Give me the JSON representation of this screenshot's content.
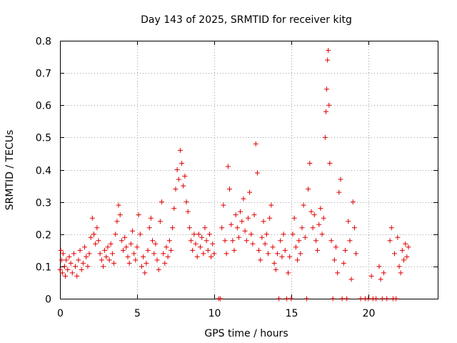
{
  "chart_data": {
    "type": "scatter",
    "title": "Day 143 of 2025, SRMTID for receiver kitg",
    "xlabel": "GPS time / hours",
    "ylabel": "SRMTID / TECUs",
    "xlim": [
      0,
      24.5
    ],
    "ylim": [
      0,
      0.8
    ],
    "xticks": [
      0,
      5,
      10,
      15,
      20
    ],
    "xtick_labels": [
      "0",
      "5",
      "10",
      "15",
      "20"
    ],
    "yticks": [
      0,
      0.1,
      0.2,
      0.3,
      0.4,
      0.5,
      0.6,
      0.7,
      0.8
    ],
    "ytick_labels": [
      "0",
      "0.1",
      "0.2",
      "0.3",
      "0.4",
      "0.5",
      "0.6",
      "0.7",
      "0.8"
    ],
    "grid": true,
    "marker": "plus",
    "color": "#e00000",
    "series": [
      {
        "name": "SRMTID",
        "points": [
          [
            0.0,
            0.09
          ],
          [
            0.05,
            0.15
          ],
          [
            0.1,
            0.12
          ],
          [
            0.15,
            0.08
          ],
          [
            0.2,
            0.14
          ],
          [
            0.3,
            0.1
          ],
          [
            0.35,
            0.07
          ],
          [
            0.4,
            0.12
          ],
          [
            0.5,
            0.09
          ],
          [
            0.6,
            0.13
          ],
          [
            0.7,
            0.11
          ],
          [
            0.8,
            0.08
          ],
          [
            0.9,
            0.14
          ],
          [
            1.0,
            0.1
          ],
          [
            1.1,
            0.07
          ],
          [
            1.2,
            0.12
          ],
          [
            1.3,
            0.15
          ],
          [
            1.4,
            0.09
          ],
          [
            1.5,
            0.11
          ],
          [
            1.6,
            0.16
          ],
          [
            1.7,
            0.13
          ],
          [
            1.8,
            0.1
          ],
          [
            1.9,
            0.14
          ],
          [
            2.0,
            0.19
          ],
          [
            2.1,
            0.25
          ],
          [
            2.2,
            0.2
          ],
          [
            2.3,
            0.17
          ],
          [
            2.4,
            0.22
          ],
          [
            2.5,
            0.18
          ],
          [
            2.6,
            0.14
          ],
          [
            2.7,
            0.12
          ],
          [
            2.8,
            0.1
          ],
          [
            2.9,
            0.15
          ],
          [
            3.0,
            0.13
          ],
          [
            3.1,
            0.16
          ],
          [
            3.2,
            0.12
          ],
          [
            3.3,
            0.17
          ],
          [
            3.4,
            0.14
          ],
          [
            3.5,
            0.11
          ],
          [
            3.6,
            0.2
          ],
          [
            3.7,
            0.24
          ],
          [
            3.8,
            0.29
          ],
          [
            3.9,
            0.26
          ],
          [
            4.0,
            0.18
          ],
          [
            4.1,
            0.15
          ],
          [
            4.2,
            0.19
          ],
          [
            4.3,
            0.16
          ],
          [
            4.4,
            0.13
          ],
          [
            4.5,
            0.11
          ],
          [
            4.6,
            0.17
          ],
          [
            4.7,
            0.21
          ],
          [
            4.8,
            0.14
          ],
          [
            4.9,
            0.12
          ],
          [
            5.0,
            0.16
          ],
          [
            5.1,
            0.26
          ],
          [
            5.2,
            0.2
          ],
          [
            5.3,
            0.1
          ],
          [
            5.4,
            0.13
          ],
          [
            5.5,
            0.08
          ],
          [
            5.6,
            0.11
          ],
          [
            5.7,
            0.15
          ],
          [
            5.8,
            0.22
          ],
          [
            5.9,
            0.25
          ],
          [
            6.0,
            0.18
          ],
          [
            6.1,
            0.14
          ],
          [
            6.2,
            0.17
          ],
          [
            6.3,
            0.12
          ],
          [
            6.4,
            0.09
          ],
          [
            6.5,
            0.24
          ],
          [
            6.6,
            0.3
          ],
          [
            6.7,
            0.14
          ],
          [
            6.8,
            0.11
          ],
          [
            6.9,
            0.16
          ],
          [
            7.0,
            0.13
          ],
          [
            7.1,
            0.18
          ],
          [
            7.2,
            0.15
          ],
          [
            7.3,
            0.22
          ],
          [
            7.4,
            0.28
          ],
          [
            7.5,
            0.34
          ],
          [
            7.6,
            0.4
          ],
          [
            7.7,
            0.37
          ],
          [
            7.8,
            0.46
          ],
          [
            7.9,
            0.42
          ],
          [
            8.0,
            0.35
          ],
          [
            8.1,
            0.38
          ],
          [
            8.2,
            0.3
          ],
          [
            8.3,
            0.27
          ],
          [
            8.4,
            0.22
          ],
          [
            8.5,
            0.18
          ],
          [
            8.6,
            0.15
          ],
          [
            8.7,
            0.2
          ],
          [
            8.8,
            0.17
          ],
          [
            8.9,
            0.13
          ],
          [
            9.0,
            0.2
          ],
          [
            9.1,
            0.16
          ],
          [
            9.2,
            0.19
          ],
          [
            9.3,
            0.14
          ],
          [
            9.4,
            0.22
          ],
          [
            9.5,
            0.18
          ],
          [
            9.6,
            0.15
          ],
          [
            9.7,
            0.2
          ],
          [
            9.8,
            0.13
          ],
          [
            9.9,
            0.17
          ],
          [
            10.0,
            0.14
          ],
          [
            10.3,
            0.0
          ],
          [
            10.4,
            0.0
          ],
          [
            10.5,
            0.22
          ],
          [
            10.6,
            0.29
          ],
          [
            10.7,
            0.18
          ],
          [
            10.8,
            0.14
          ],
          [
            10.9,
            0.41
          ],
          [
            11.0,
            0.34
          ],
          [
            11.1,
            0.23
          ],
          [
            11.2,
            0.18
          ],
          [
            11.3,
            0.15
          ],
          [
            11.4,
            0.26
          ],
          [
            11.5,
            0.22
          ],
          [
            11.6,
            0.19
          ],
          [
            11.7,
            0.27
          ],
          [
            11.8,
            0.24
          ],
          [
            11.9,
            0.31
          ],
          [
            12.0,
            0.21
          ],
          [
            12.1,
            0.18
          ],
          [
            12.2,
            0.25
          ],
          [
            12.3,
            0.33
          ],
          [
            12.4,
            0.2
          ],
          [
            12.5,
            0.17
          ],
          [
            12.6,
            0.26
          ],
          [
            12.7,
            0.48
          ],
          [
            12.8,
            0.39
          ],
          [
            12.9,
            0.15
          ],
          [
            13.0,
            0.12
          ],
          [
            13.1,
            0.19
          ],
          [
            13.2,
            0.24
          ],
          [
            13.3,
            0.17
          ],
          [
            13.4,
            0.2
          ],
          [
            13.5,
            0.14
          ],
          [
            13.6,
            0.25
          ],
          [
            13.7,
            0.29
          ],
          [
            13.8,
            0.16
          ],
          [
            13.9,
            0.11
          ],
          [
            14.0,
            0.09
          ],
          [
            14.1,
            0.14
          ],
          [
            14.2,
            0.0
          ],
          [
            14.3,
            0.18
          ],
          [
            14.4,
            0.13
          ],
          [
            14.5,
            0.2
          ],
          [
            14.6,
            0.15
          ],
          [
            14.7,
            0.0
          ],
          [
            14.8,
            0.08
          ],
          [
            14.9,
            0.13
          ],
          [
            15.0,
            0.0
          ],
          [
            15.1,
            0.2
          ],
          [
            15.2,
            0.25
          ],
          [
            15.3,
            0.16
          ],
          [
            15.4,
            0.12
          ],
          [
            15.5,
            0.18
          ],
          [
            15.6,
            0.14
          ],
          [
            15.7,
            0.22
          ],
          [
            15.8,
            0.29
          ],
          [
            15.9,
            0.19
          ],
          [
            16.0,
            0.0
          ],
          [
            16.1,
            0.34
          ],
          [
            16.2,
            0.42
          ],
          [
            16.3,
            0.27
          ],
          [
            16.4,
            0.22
          ],
          [
            16.5,
            0.26
          ],
          [
            16.6,
            0.18
          ],
          [
            16.7,
            0.15
          ],
          [
            16.8,
            0.23
          ],
          [
            16.9,
            0.28
          ],
          [
            17.0,
            0.2
          ],
          [
            17.1,
            0.25
          ],
          [
            17.2,
            0.5
          ],
          [
            17.25,
            0.58
          ],
          [
            17.3,
            0.65
          ],
          [
            17.35,
            0.74
          ],
          [
            17.4,
            0.77
          ],
          [
            17.45,
            0.6
          ],
          [
            17.5,
            0.42
          ],
          [
            17.6,
            0.18
          ],
          [
            17.7,
            0.0
          ],
          [
            17.8,
            0.12
          ],
          [
            17.9,
            0.16
          ],
          [
            18.0,
            0.08
          ],
          [
            18.1,
            0.33
          ],
          [
            18.2,
            0.37
          ],
          [
            18.3,
            0.0
          ],
          [
            18.4,
            0.11
          ],
          [
            18.5,
            0.15
          ],
          [
            18.6,
            0.0
          ],
          [
            18.7,
            0.24
          ],
          [
            18.8,
            0.18
          ],
          [
            18.9,
            0.06
          ],
          [
            19.0,
            0.3
          ],
          [
            19.1,
            0.22
          ],
          [
            19.2,
            0.14
          ],
          [
            19.5,
            0.0
          ],
          [
            19.8,
            0.0
          ],
          [
            20.0,
            0.0
          ],
          [
            20.2,
            0.07
          ],
          [
            20.3,
            0.0
          ],
          [
            20.5,
            0.0
          ],
          [
            20.7,
            0.1
          ],
          [
            20.8,
            0.06
          ],
          [
            20.9,
            0.0
          ],
          [
            21.0,
            0.08
          ],
          [
            21.2,
            0.0
          ],
          [
            21.4,
            0.18
          ],
          [
            21.5,
            0.22
          ],
          [
            21.6,
            0.0
          ],
          [
            21.7,
            0.14
          ],
          [
            21.8,
            0.0
          ],
          [
            21.9,
            0.19
          ],
          [
            22.0,
            0.1
          ],
          [
            22.1,
            0.08
          ],
          [
            22.2,
            0.15
          ],
          [
            22.3,
            0.12
          ],
          [
            22.4,
            0.17
          ],
          [
            22.5,
            0.13
          ],
          [
            22.6,
            0.16
          ]
        ]
      }
    ]
  }
}
